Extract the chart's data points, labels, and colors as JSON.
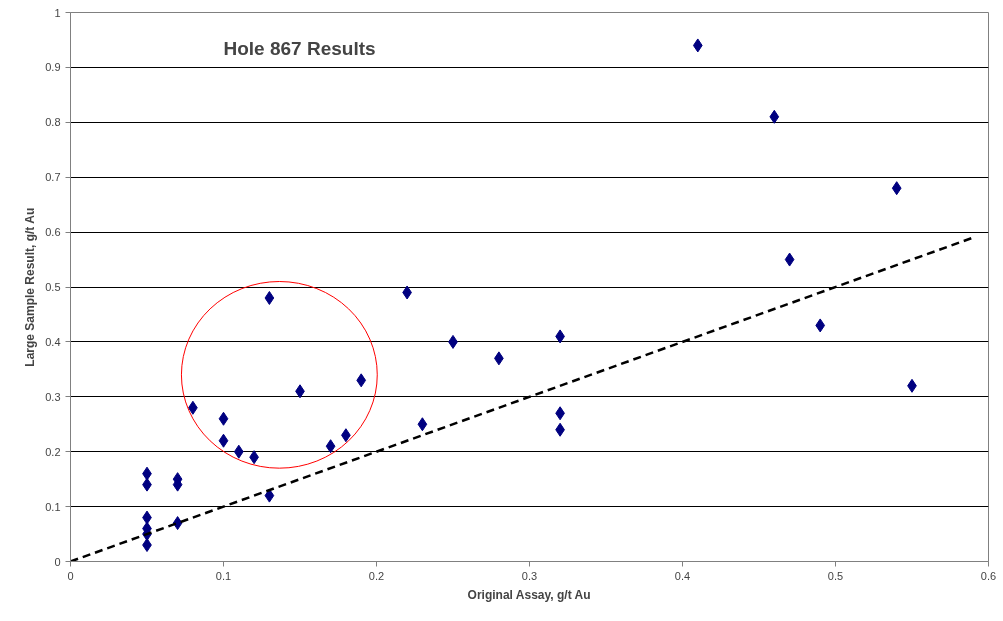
{
  "chart_data": {
    "type": "scatter",
    "title": "Hole 867 Results",
    "xlabel": "Original Assay, g/t Au",
    "ylabel": "Large Sample Result, g/t Au",
    "xlim": [
      0,
      0.6
    ],
    "ylim": [
      0,
      1
    ],
    "xticks": [
      0,
      0.1,
      0.2,
      0.3,
      0.4,
      0.5,
      0.6
    ],
    "yticks": [
      0,
      0.1,
      0.2,
      0.3,
      0.4,
      0.5,
      0.6,
      0.7,
      0.8,
      0.9,
      1
    ],
    "grid": "y",
    "series": [
      {
        "color": "#000080",
        "marker": "diamond",
        "x": [
          0.41,
          0.46,
          0.54,
          0.47,
          0.49,
          0.55,
          0.22,
          0.13,
          0.25,
          0.32,
          0.28,
          0.19,
          0.15,
          0.08,
          0.1,
          0.32,
          0.23,
          0.32,
          0.18,
          0.1,
          0.17,
          0.11,
          0.12,
          0.05,
          0.07,
          0.05,
          0.07,
          0.13,
          0.05,
          0.07,
          0.05,
          0.05,
          0.05
        ],
        "values": [
          0.94,
          0.81,
          0.68,
          0.55,
          0.43,
          0.32,
          0.49,
          0.48,
          0.4,
          0.41,
          0.37,
          0.33,
          0.31,
          0.28,
          0.26,
          0.27,
          0.25,
          0.24,
          0.23,
          0.22,
          0.21,
          0.2,
          0.19,
          0.16,
          0.15,
          0.14,
          0.14,
          0.12,
          0.08,
          0.07,
          0.06,
          0.05,
          0.03
        ]
      },
      {
        "type": "line",
        "color": "#000000",
        "line_style": "dashed",
        "marker": "none",
        "x": [
          0,
          0.59
        ],
        "values": [
          0,
          0.59
        ]
      }
    ]
  }
}
